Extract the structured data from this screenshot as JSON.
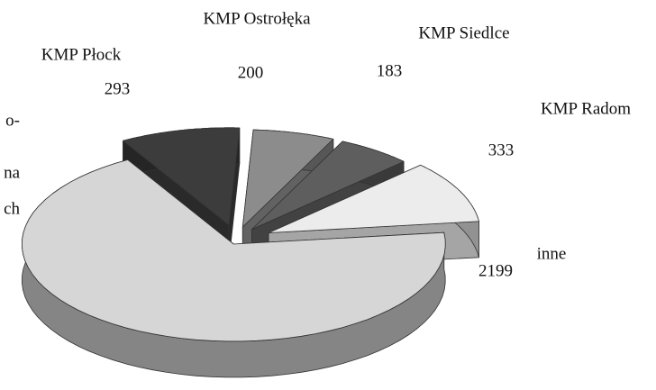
{
  "chart_data": {
    "type": "pie",
    "categories": [
      "KMP Płock",
      "KMP Ostrołęka",
      "KMP Siedlce",
      "KMP Radom",
      "inne"
    ],
    "values": [
      293,
      200,
      183,
      333,
      2199
    ],
    "colors": [
      "#3c3c3c",
      "#8c8c8c",
      "#5e5e5e",
      "#ececec",
      "#d6d6d6"
    ],
    "clipped_label_lines": [
      "o-",
      "na",
      "ch"
    ]
  }
}
